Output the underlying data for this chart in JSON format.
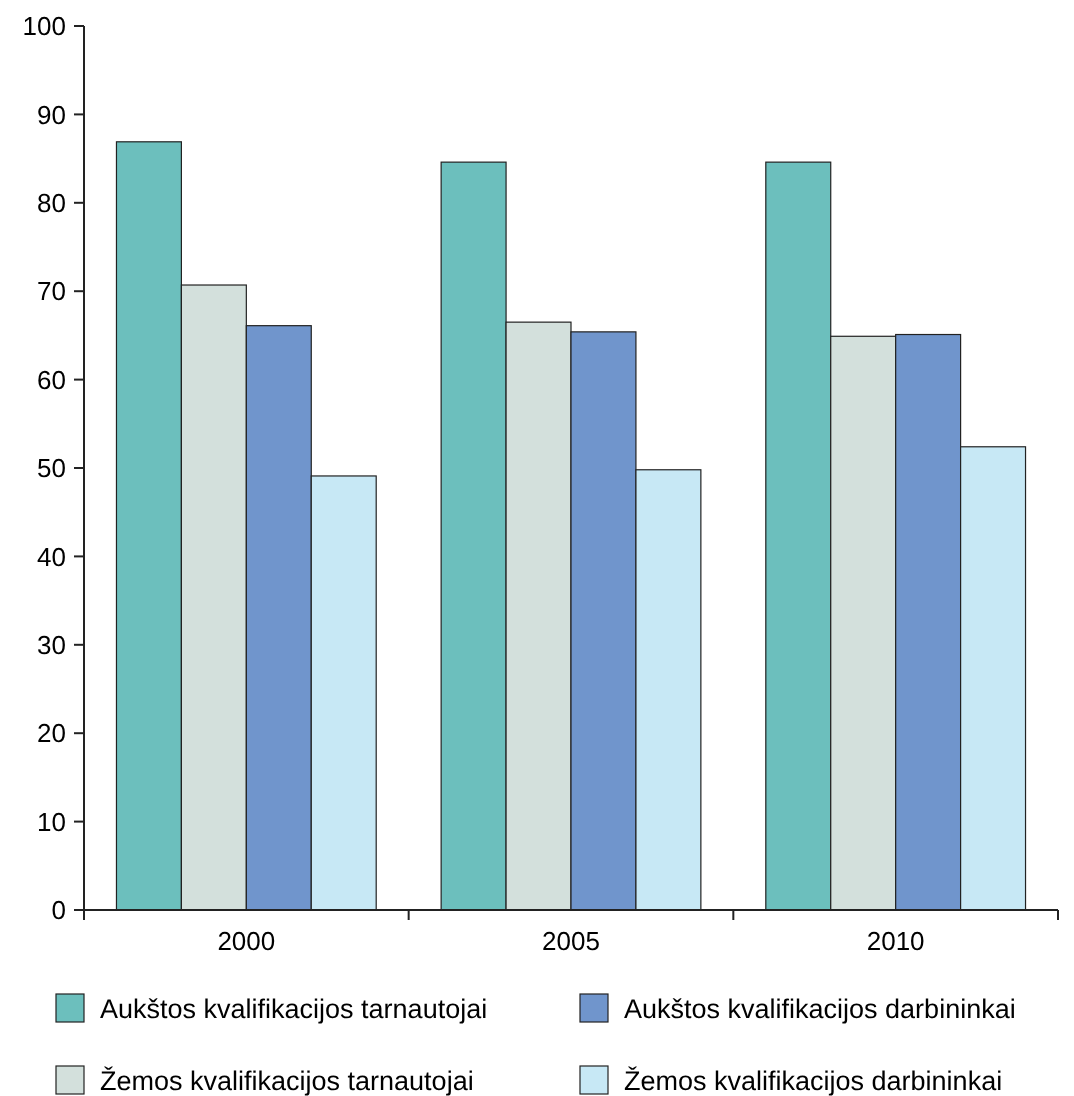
{
  "chart_data": {
    "type": "bar",
    "categories": [
      "2000",
      "2005",
      "2010"
    ],
    "series": [
      {
        "name": "Aukštos kvalifikacijos tarnautojai",
        "color": "#6cbfbd",
        "values": [
          86.9,
          84.6,
          84.6
        ]
      },
      {
        "name": "Žemos kvalifikacijos tarnautojai",
        "color": "#d3e0dc",
        "values": [
          70.7,
          66.5,
          64.9
        ]
      },
      {
        "name": "Aukštos kvalifikacijos darbininkai",
        "color": "#7095cc",
        "values": [
          66.1,
          65.4,
          65.1
        ]
      },
      {
        "name": "Žemos kvalifikacijos darbininkai",
        "color": "#c7e8f5",
        "values": [
          49.1,
          49.8,
          52.4
        ]
      }
    ],
    "ylim": [
      0,
      100
    ],
    "yticks": [
      0,
      10,
      20,
      30,
      40,
      50,
      60,
      70,
      80,
      90,
      100
    ],
    "grid": false,
    "legend": "bottom"
  }
}
